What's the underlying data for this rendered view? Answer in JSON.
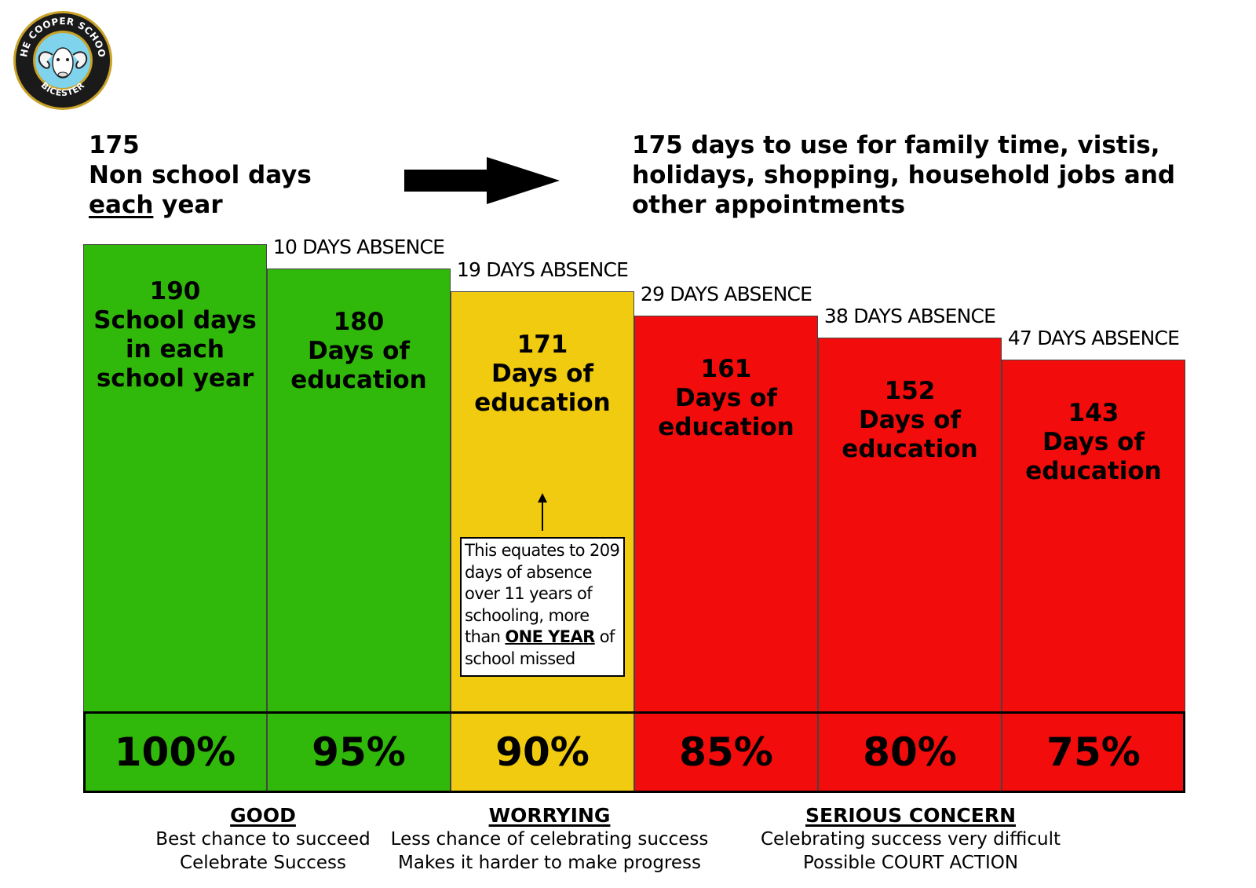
{
  "logo": {
    "school_name": "THE COOPER SCHOOL",
    "town": "BICESTER",
    "icon": "ram-head-icon",
    "colors": {
      "ring": "#1a1a1a",
      "gold": "#c9a227",
      "inner": "#7fd3ec"
    }
  },
  "header_left": {
    "line1": "175",
    "line2": "Non school days",
    "line3_emph": "each",
    "line3_rest": " year"
  },
  "header_right": {
    "text": "175 days to use for family time, vistis, holidays, shopping, household jobs and other appointments"
  },
  "chart_data": {
    "type": "bar",
    "y_unit": "days",
    "ylim": [
      0,
      190
    ],
    "categories": [
      "100%",
      "95%",
      "90%",
      "85%",
      "80%",
      "75%"
    ],
    "values": [
      190,
      180,
      171,
      161,
      152,
      143
    ],
    "absence_values": [
      0,
      10,
      19,
      29,
      38,
      47
    ],
    "colors": [
      "#30b80a",
      "#30b80a",
      "#f0cb10",
      "#f20c0c",
      "#f20c0c",
      "#f20c0c"
    ],
    "bar_labels": [
      [
        "190",
        "School days",
        "in each",
        "school year"
      ],
      [
        "180",
        "Days of",
        "education"
      ],
      [
        "171",
        "Days of",
        "education"
      ],
      [
        "161",
        "Days of",
        "education"
      ],
      [
        "152",
        "Days of",
        "education"
      ],
      [
        "143",
        "Days of",
        "education"
      ]
    ],
    "absence_labels": [
      "",
      "10 DAYS ABSENCE",
      "19 DAYS ABSENCE",
      "29 DAYS ABSENCE",
      "38 DAYS ABSENCE",
      "47 DAYS ABSENCE"
    ],
    "annotation": {
      "bar_index": 2,
      "pre": "This equates to 209 days of absence over 11 years of schooling, more than ",
      "strong": "ONE YEAR",
      "post": " of school missed"
    }
  },
  "categories_legend": [
    {
      "title": "GOOD",
      "line1": "Best chance to succeed",
      "line2": "Celebrate Success"
    },
    {
      "title": "WORRYING",
      "line1": "Less chance of celebrating success",
      "line2": "Makes it harder to make progress"
    },
    {
      "title": "SERIOUS CONCERN",
      "line1": "Celebrating success very difficult",
      "line2": "Possible COURT ACTION"
    }
  ]
}
